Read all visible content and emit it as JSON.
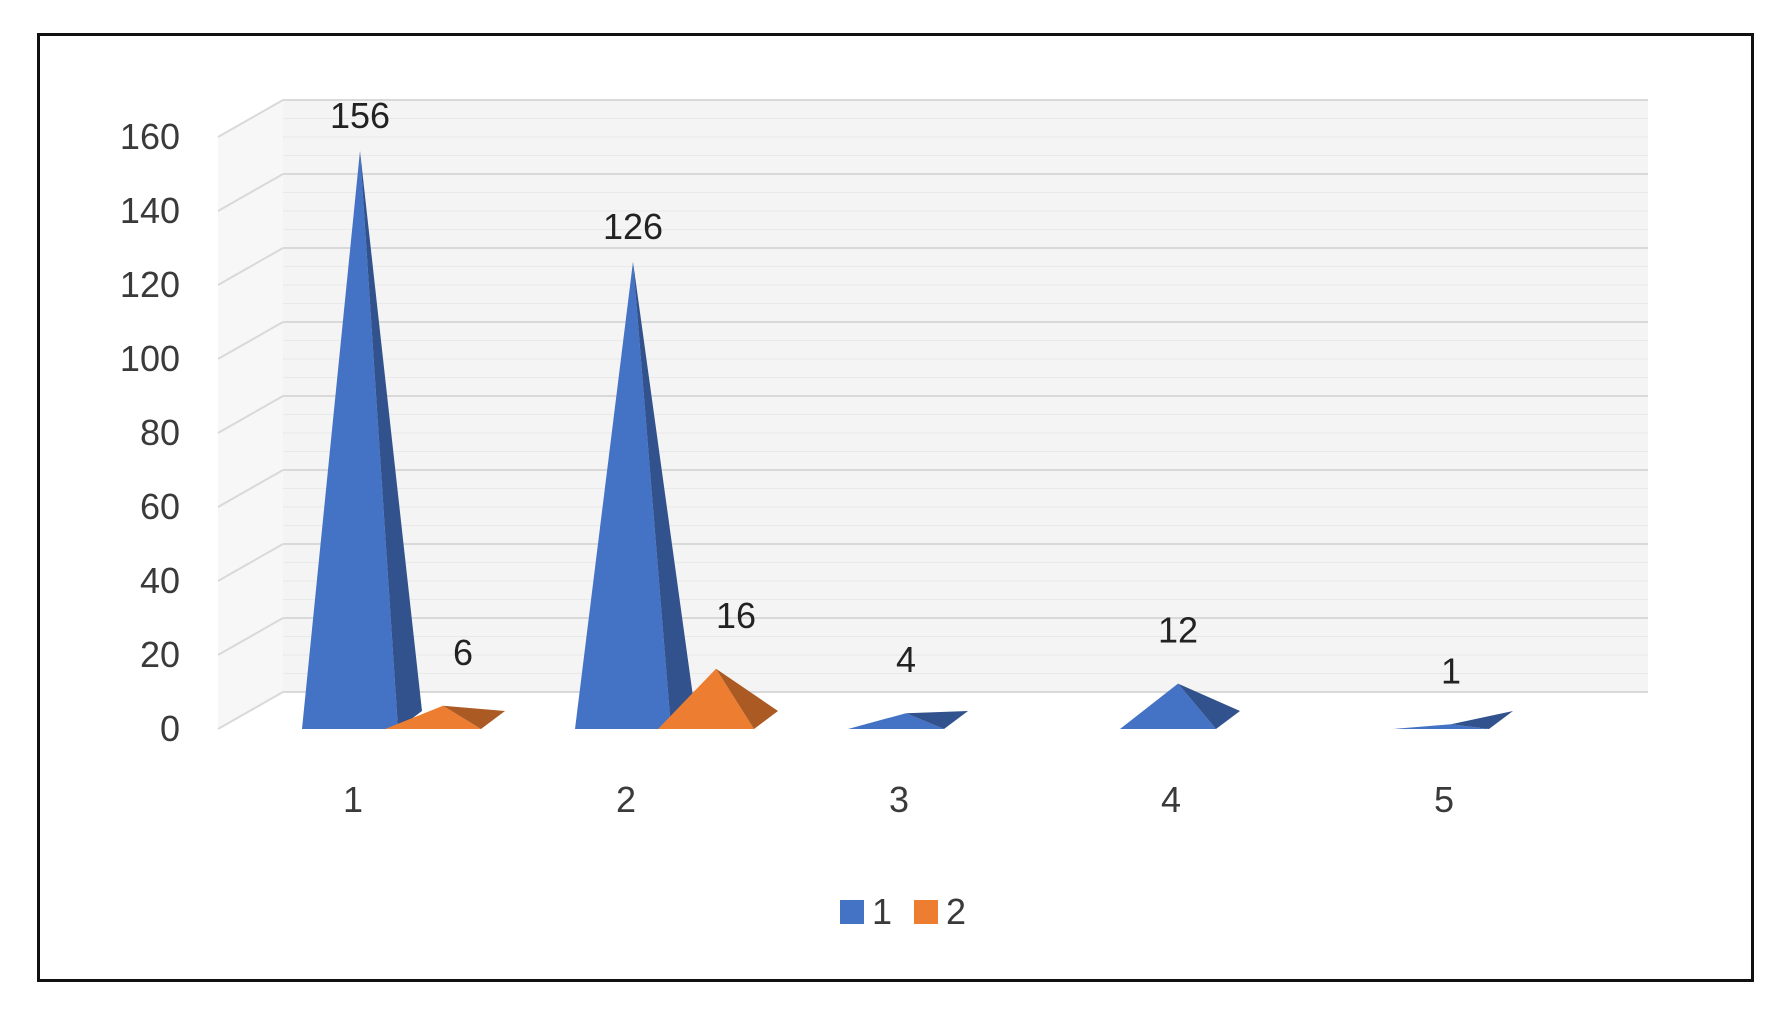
{
  "chart_data": {
    "type": "bar",
    "style": "3d-pyramid",
    "categories": [
      "1",
      "2",
      "3",
      "4",
      "5"
    ],
    "series": [
      {
        "name": "1",
        "color": "#4472C4",
        "values": [
          156,
          126,
          4,
          12,
          1
        ]
      },
      {
        "name": "2",
        "color": "#ED7D31",
        "values": [
          6,
          16,
          null,
          null,
          null
        ]
      }
    ],
    "data_labels": {
      "series_1": [
        "156",
        "126",
        "4",
        "12",
        "1"
      ],
      "series_2": [
        "6",
        "16",
        "",
        "",
        ""
      ]
    },
    "yticks": [
      "0",
      "20",
      "40",
      "60",
      "80",
      "100",
      "120",
      "140",
      "160"
    ],
    "ylim": [
      0,
      160
    ],
    "grid": true,
    "legend_position": "bottom",
    "title": "",
    "xlabel": "",
    "ylabel": ""
  }
}
